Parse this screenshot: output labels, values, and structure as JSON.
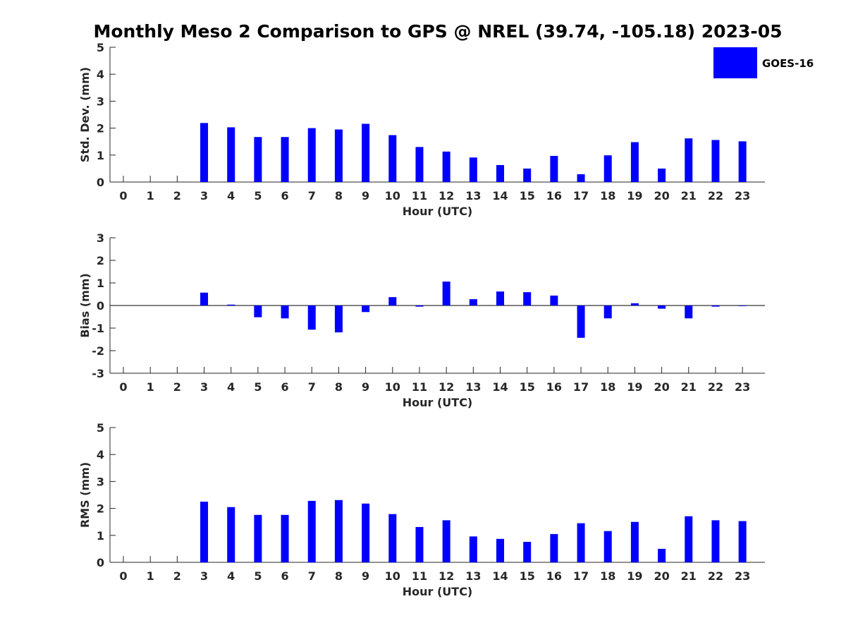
{
  "title": "Monthly Meso 2 Comparison to GPS @ NREL (39.74, -105.18) 2023-05",
  "legend": {
    "label": "GOES-16",
    "color": "#0000ff",
    "placement": "top-right"
  },
  "chart_data": [
    {
      "type": "bar",
      "xlabel": "Hour (UTC)",
      "ylabel": "Std. Dev. (mm)",
      "ylim": [
        0,
        5
      ],
      "yticks": [
        0,
        1,
        2,
        3,
        4,
        5
      ],
      "categories": [
        "0",
        "1",
        "2",
        "3",
        "4",
        "5",
        "6",
        "7",
        "8",
        "9",
        "10",
        "11",
        "12",
        "13",
        "14",
        "15",
        "16",
        "17",
        "18",
        "19",
        "20",
        "21",
        "22",
        "23"
      ],
      "series": [
        {
          "name": "GOES-16",
          "values": [
            null,
            null,
            null,
            2.19,
            2.03,
            1.67,
            1.67,
            2.0,
            1.95,
            2.16,
            1.74,
            1.3,
            1.13,
            0.91,
            0.63,
            0.5,
            0.97,
            0.29,
            0.99,
            1.48,
            0.5,
            1.62,
            1.56,
            1.51
          ]
        }
      ],
      "grid": false
    },
    {
      "type": "bar",
      "xlabel": "Hour (UTC)",
      "ylabel": "Bias (mm)",
      "ylim": [
        -3,
        3
      ],
      "yticks": [
        -3,
        -2,
        -1,
        0,
        1,
        2,
        3
      ],
      "categories": [
        "0",
        "1",
        "2",
        "3",
        "4",
        "5",
        "6",
        "7",
        "8",
        "9",
        "10",
        "11",
        "12",
        "13",
        "14",
        "15",
        "16",
        "17",
        "18",
        "19",
        "20",
        "21",
        "22",
        "23"
      ],
      "series": [
        {
          "name": "GOES-16",
          "values": [
            null,
            null,
            null,
            0.57,
            0.04,
            -0.52,
            -0.57,
            -1.07,
            -1.19,
            -0.29,
            0.37,
            -0.05,
            1.06,
            0.28,
            0.62,
            0.59,
            0.44,
            -1.43,
            -0.57,
            0.1,
            -0.14,
            -0.57,
            -0.05,
            0
          ]
        }
      ],
      "grid": false
    },
    {
      "type": "bar",
      "xlabel": "Hour (UTC)",
      "ylabel": "RMS (mm)",
      "ylim": [
        0,
        5
      ],
      "yticks": [
        0,
        1,
        2,
        3,
        4,
        5
      ],
      "categories": [
        "0",
        "1",
        "2",
        "3",
        "4",
        "5",
        "6",
        "7",
        "8",
        "9",
        "10",
        "11",
        "12",
        "13",
        "14",
        "15",
        "16",
        "17",
        "18",
        "19",
        "20",
        "21",
        "22",
        "23"
      ],
      "series": [
        {
          "name": "GOES-16",
          "values": [
            null,
            null,
            null,
            2.25,
            2.05,
            1.76,
            1.76,
            2.28,
            2.31,
            2.18,
            1.79,
            1.31,
            1.56,
            0.96,
            0.87,
            0.76,
            1.05,
            1.45,
            1.16,
            1.5,
            0.5,
            1.71,
            1.56,
            1.53
          ]
        }
      ],
      "grid": false
    }
  ]
}
